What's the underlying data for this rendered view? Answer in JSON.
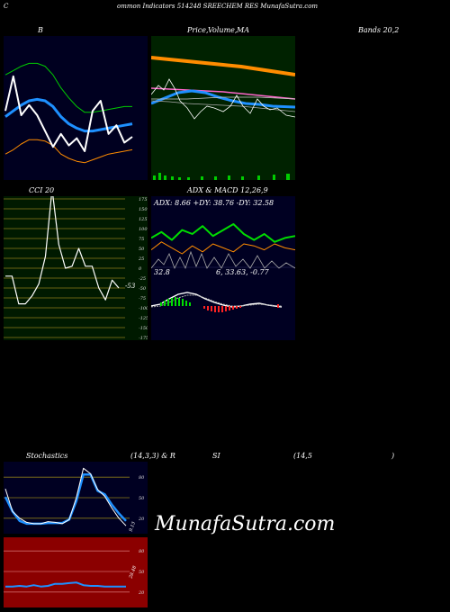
{
  "header": {
    "left": "C",
    "right": "ommon  Indicators 514248  SREECHEM RES MunafaSutra.com"
  },
  "panels": {
    "bollinger": {
      "label": "B",
      "bands_label": "Bands 20,2",
      "colors": {
        "bg": "#000020",
        "upper": "#00cc00",
        "lower": "#ff8c00",
        "mid": "#1e90ff",
        "price": "#ffffff"
      }
    },
    "price_ma": {
      "label_price": "Price,",
      "label_volume": "Volume,",
      "label_ma": "MA",
      "colors": {
        "bg": "#002200"
      }
    },
    "cci": {
      "label": "CCI 20",
      "value_label": "-53",
      "ticks": [
        "175",
        "150",
        "125",
        "100",
        "75",
        "50",
        "25",
        "0",
        "-25",
        "-50",
        "-75",
        "-100",
        "-125",
        "-150",
        "-175"
      ],
      "colors": {
        "bg": "#001a00",
        "line": "#ffffff",
        "grid": "#8a7a1a"
      }
    },
    "adx_macd": {
      "label": "ADX  & MACD 12,26,9",
      "adx_text": "ADX: 8.66  +DY: 38.76  -DY: 32.58",
      "macd_left": "32.8",
      "macd_right": "6,  33.63,  -0.77",
      "colors": {
        "bg": "#000022",
        "plus_di": "#00dd00",
        "minus_di": "#ff8c00"
      }
    },
    "stochastics": {
      "label_left": "Stochastics",
      "label_mid": "(14,3,3) & R",
      "label_rsi": "SI",
      "label_rsi_params": "(14,5",
      "label_close": ")",
      "value_label": "9.13",
      "ticks": [
        "80",
        "50",
        "20"
      ],
      "colors": {
        "bg": "#000022",
        "k": "#ffffff",
        "d": "#1e90ff",
        "grid": "#8a7a1a"
      }
    },
    "rsi": {
      "value_label": "28.48",
      "ticks": [
        "80",
        "50",
        "20"
      ],
      "colors": {
        "bg": "#8b0000",
        "line": "#1e90ff",
        "grid": "#cc6666"
      }
    }
  },
  "watermark": "MunafaSutra.com",
  "chart_data": [
    {
      "type": "line",
      "title": "Bollinger Bands 20,2",
      "series": [
        {
          "values": [
            73,
            76,
            79,
            81,
            81,
            79,
            73,
            64,
            57,
            51,
            47,
            47,
            48,
            49,
            50,
            51,
            51
          ]
        },
        {
          "values": [
            18,
            21,
            25,
            28,
            28,
            27,
            24,
            18,
            15,
            13,
            12,
            14,
            16,
            18,
            19,
            20,
            21
          ]
        },
        {
          "values": [
            44,
            48,
            52,
            55,
            56,
            55,
            51,
            44,
            39,
            36,
            34,
            34,
            35,
            36,
            37,
            38,
            39
          ]
        },
        {
          "values": [
            48,
            72,
            45,
            52,
            45,
            34,
            23,
            32,
            24,
            29,
            20,
            48,
            55,
            32,
            38,
            26,
            30
          ]
        }
      ]
    },
    {
      "type": "line",
      "title": "CCI 20",
      "series": [
        {
          "values": [
            -20,
            -20,
            -90,
            -90,
            -70,
            -40,
            30,
            200,
            60,
            0,
            5,
            50,
            5,
            5,
            -50,
            -80,
            -30,
            -50
          ]
        }
      ]
    },
    {
      "type": "line",
      "title": "ADX & MACD 12,26,9",
      "series": [
        {
          "values": [
            38,
            41,
            37,
            42,
            40,
            44,
            39,
            42,
            45,
            40,
            37,
            40,
            36,
            38,
            39
          ]
        },
        {
          "values": [
            32,
            36,
            33,
            30,
            34,
            31,
            35,
            33,
            31,
            35,
            34,
            32,
            35,
            33,
            32
          ]
        }
      ]
    },
    {
      "type": "line",
      "title": "Stochastics (14,3,3)",
      "series": [
        {
          "values": [
            63,
            30,
            20,
            14,
            12,
            12,
            15,
            14,
            12,
            18,
            50,
            93,
            85,
            62,
            52,
            35,
            20,
            9
          ]
        },
        {
          "values": [
            51,
            30,
            16,
            12,
            12,
            12,
            13,
            13,
            13,
            18,
            45,
            84,
            84,
            60,
            55,
            40,
            27,
            16
          ]
        }
      ]
    },
    {
      "type": "line",
      "title": "RSI",
      "series": [
        {
          "values": [
            28,
            28,
            29,
            28,
            30,
            28,
            29,
            32,
            32,
            33,
            34,
            30,
            29,
            29,
            28,
            28,
            28,
            28
          ]
        }
      ]
    }
  ]
}
